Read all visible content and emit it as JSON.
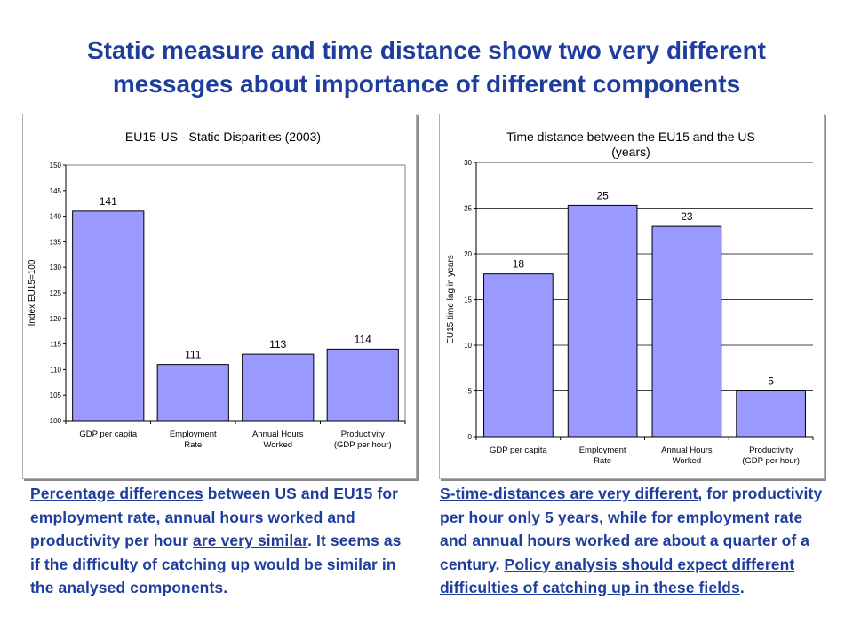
{
  "title": {
    "line1": "Static measure and time distance show two very different",
    "line2": "messages about importance of different components"
  },
  "colors": {
    "bar": "#9999ff",
    "title": "#1f3d9c"
  },
  "chart_data": [
    {
      "type": "bar",
      "title": "EU15-US - Static Disparities (2003)",
      "ylabel": "Index EU15=100",
      "xlabel": "",
      "ylim": [
        100,
        150
      ],
      "yticks": [
        "100",
        "105",
        "110",
        "115",
        "120",
        "125",
        "130",
        "135",
        "140",
        "145",
        "150"
      ],
      "categories": [
        [
          "GDP per capita"
        ],
        [
          "Employment",
          "Rate"
        ],
        [
          "Annual Hours",
          "Worked"
        ],
        [
          "Productivity",
          "(GDP per hour)"
        ]
      ],
      "values": [
        141,
        111,
        113,
        114
      ],
      "grid": false
    },
    {
      "type": "bar",
      "title": [
        "Time distance between the EU15 and the US",
        "(years)"
      ],
      "ylabel": "EU15 time lag in years",
      "xlabel": "",
      "ylim": [
        0,
        30
      ],
      "yticks": [
        "0",
        "5",
        "10",
        "15",
        "20",
        "25",
        "30"
      ],
      "categories": [
        [
          "GDP per capita"
        ],
        [
          "Employment",
          "Rate"
        ],
        [
          "Annual Hours",
          "Worked"
        ],
        [
          "Productivity",
          "(GDP per hour)"
        ]
      ],
      "values": [
        17.8,
        25.3,
        23,
        5
      ],
      "data_labels": [
        "18",
        "25",
        "23",
        "5"
      ],
      "grid": true
    }
  ],
  "captions": {
    "left": {
      "u1": "Percentage differences",
      "t1": " between US and EU15 for employment rate, annual hours worked and productivity per hour ",
      "u2": "are very similar",
      "t2": ". It seems as if the difficulty of catching up would be similar in the analysed components."
    },
    "right": {
      "u1": "S-time-distances are very different",
      "t1": ", for productivity per hour only 5 years, while for employment rate and annual hours worked are about a quarter of a century. ",
      "u2": "Policy analysis should expect different difficulties of catching up in these fields",
      "t2": "."
    }
  }
}
